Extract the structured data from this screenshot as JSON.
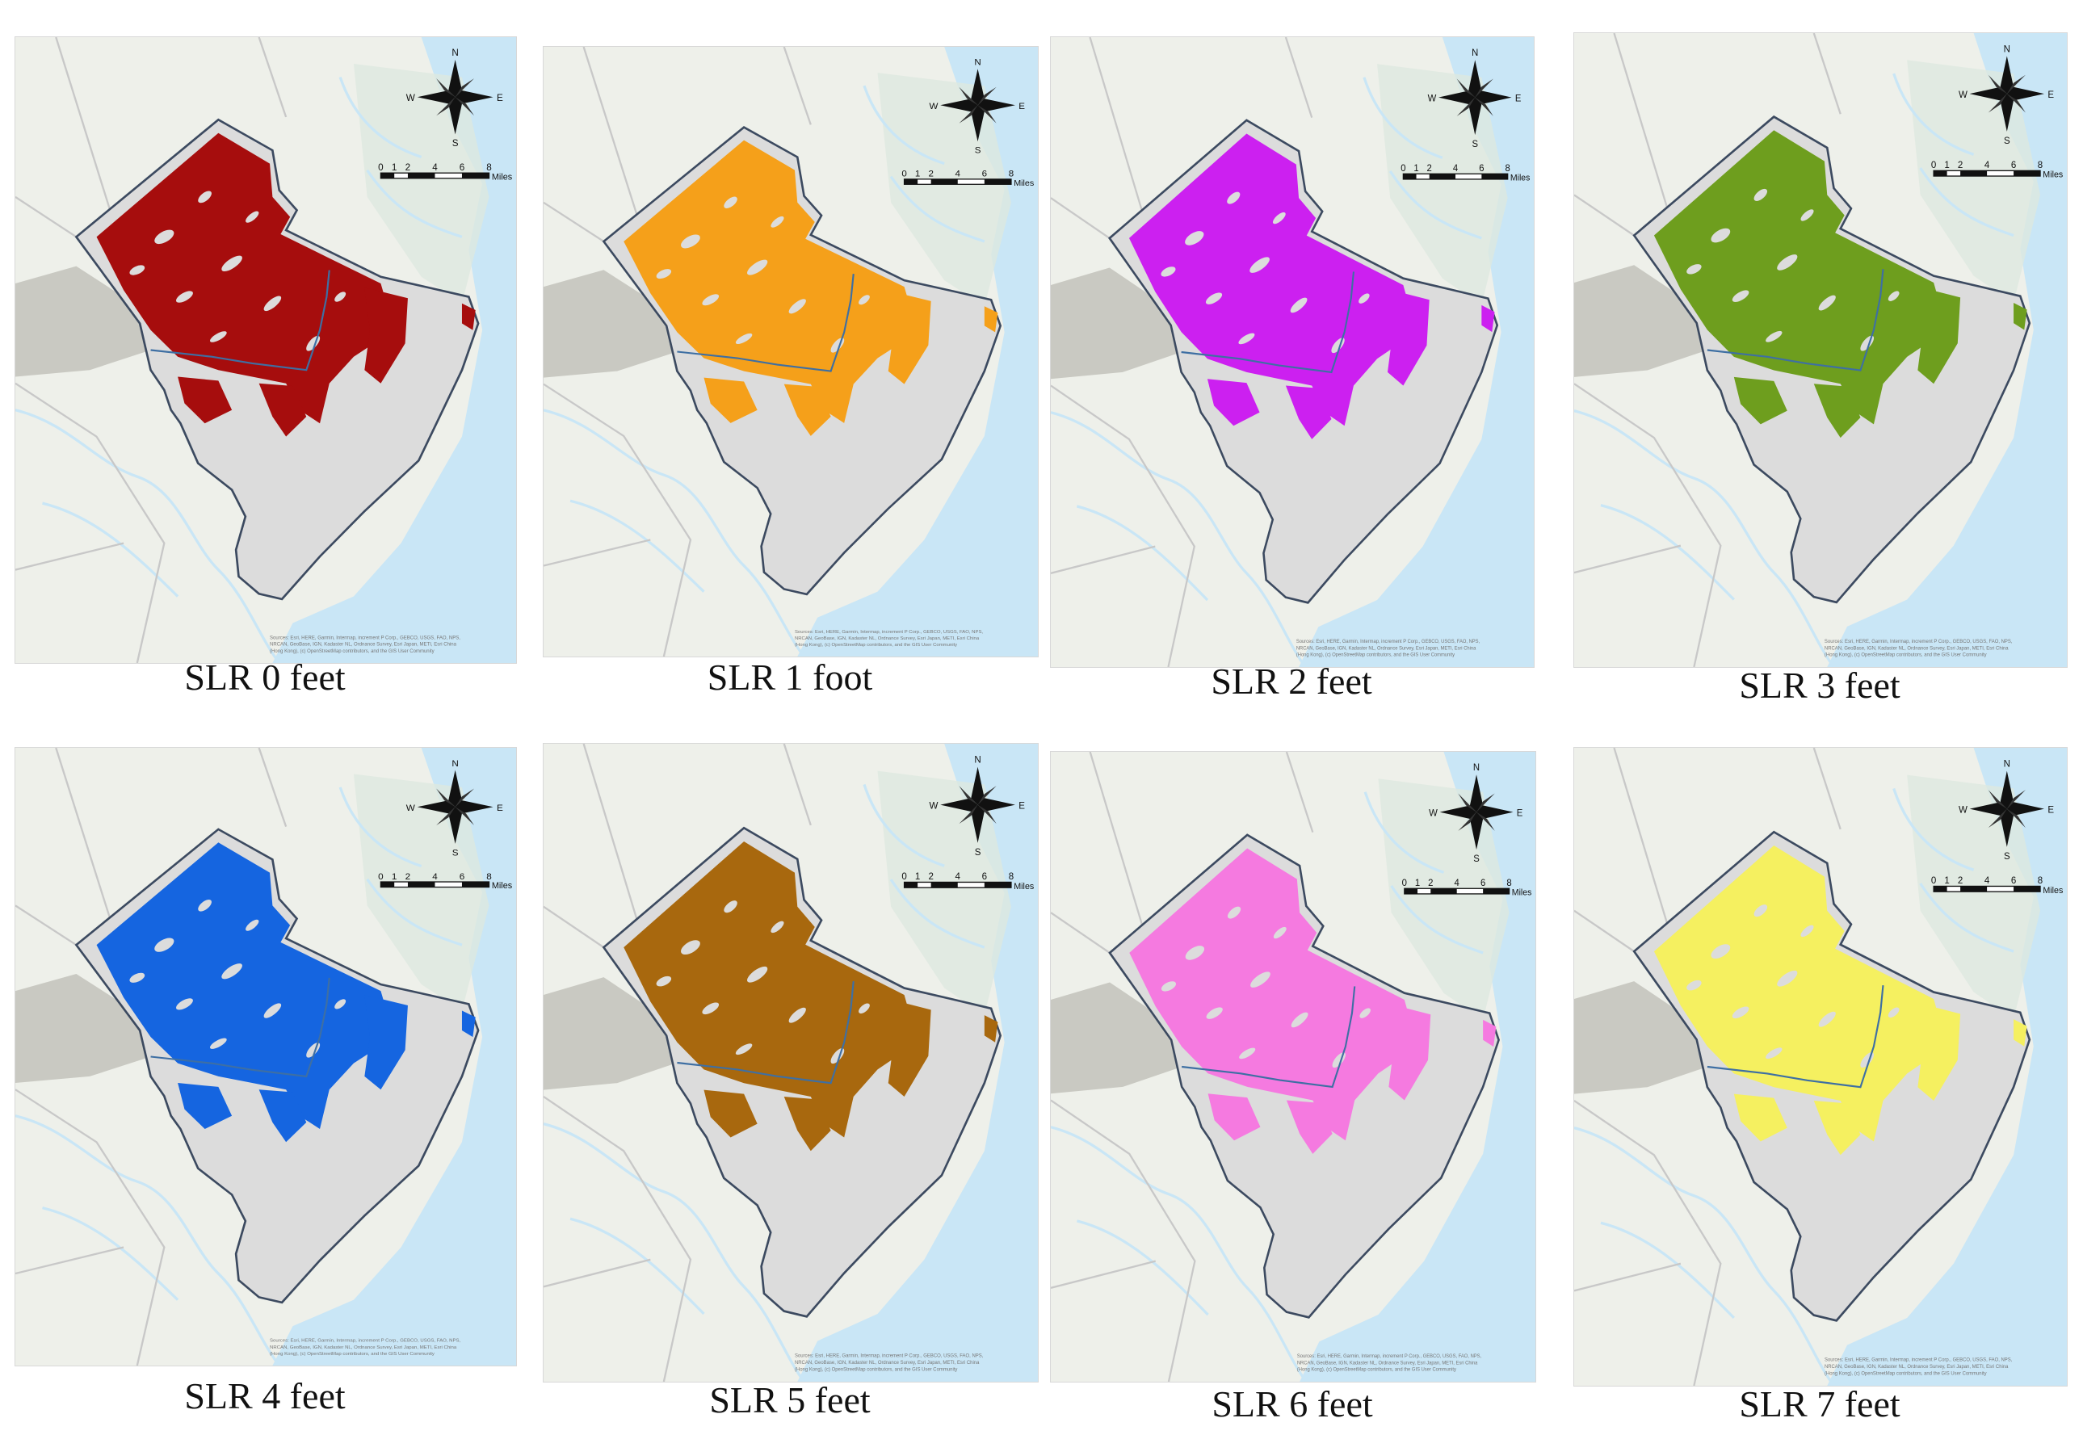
{
  "map_labels": {
    "north": "N",
    "south": "S",
    "east": "E",
    "west": "W",
    "scale_ticks": [
      "0",
      "1",
      "2",
      "4",
      "6",
      "8"
    ],
    "scale_unit": "Miles"
  },
  "attribution": [
    "Sources: Esri, HERE, Garmin, Intermap, increment P Corp., GEBCO, USGS, FAO, NPS,",
    "NRCAN, GeoBase, IGN, Kadaster NL, Ordnance Survey, Esri Japan, METI, Esri China",
    "(Hong Kong), (c) OpenStreetMap contributors, and the GIS User Community"
  ],
  "panels": [
    {
      "caption": "SLR 0 feet",
      "color": "#a60d0d"
    },
    {
      "caption": "SLR 1 foot",
      "color": "#f5a01a"
    },
    {
      "caption": "SLR 2 feet",
      "color": "#cc20f0"
    },
    {
      "caption": "SLR 3 feet",
      "color": "#6e9e1e"
    },
    {
      "caption": "SLR 4 feet",
      "color": "#1565e0"
    },
    {
      "caption": "SLR 5 feet",
      "color": "#a8680e"
    },
    {
      "caption": "SLR 6 feet",
      "color": "#f57ae0"
    },
    {
      "caption": "SLR 7 feet",
      "color": "#f5f060"
    }
  ]
}
